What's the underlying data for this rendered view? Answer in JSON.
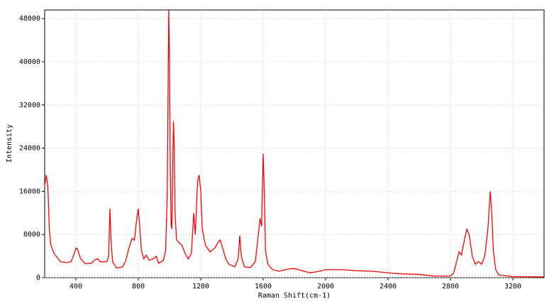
{
  "chart_data": {
    "type": "line",
    "x_label": "Raman Shift(cm-1)",
    "y_label": "Intensity",
    "xlim": [
      200,
      3400
    ],
    "ylim": [
      0,
      49600
    ],
    "xticks": [
      400,
      800,
      1200,
      1600,
      2000,
      2400,
      2800,
      3200
    ],
    "yticks": [
      0,
      8000,
      16000,
      24000,
      32000,
      40000,
      48000
    ],
    "grid": true,
    "x": [
      200,
      210,
      220,
      230,
      240,
      260,
      300,
      340,
      370,
      390,
      400,
      410,
      430,
      460,
      500,
      520,
      540,
      560,
      600,
      610,
      618,
      625,
      635,
      660,
      700,
      720,
      740,
      760,
      775,
      790,
      800,
      810,
      820,
      835,
      850,
      870,
      900,
      915,
      930,
      960,
      975,
      985,
      995,
      1000,
      1005,
      1010,
      1015,
      1025,
      1030,
      1035,
      1045,
      1060,
      1080,
      1100,
      1120,
      1140,
      1155,
      1165,
      1180,
      1190,
      1200,
      1210,
      1230,
      1260,
      1290,
      1310,
      1325,
      1340,
      1360,
      1380,
      1420,
      1440,
      1450,
      1460,
      1480,
      1520,
      1550,
      1580,
      1590,
      1600,
      1608,
      1615,
      1630,
      1660,
      1700,
      1760,
      1800,
      1850,
      1900,
      1960,
      2000,
      2100,
      2200,
      2300,
      2400,
      2500,
      2600,
      2700,
      2800,
      2820,
      2840,
      2855,
      2870,
      2890,
      2905,
      2920,
      2940,
      2960,
      2980,
      3000,
      3020,
      3040,
      3055,
      3065,
      3075,
      3090,
      3110,
      3200,
      3400
    ],
    "series": [
      {
        "name": "Intensity",
        "color": "#ff0000",
        "values": [
          17000,
          19000,
          17000,
          9000,
          6000,
          4500,
          3000,
          2800,
          3000,
          4500,
          5500,
          5300,
          3500,
          2600,
          2700,
          3300,
          3500,
          2900,
          3000,
          4000,
          12800,
          7000,
          3000,
          1800,
          2000,
          3200,
          5500,
          7300,
          7000,
          11000,
          12800,
          9000,
          5000,
          3500,
          4200,
          3200,
          3600,
          4000,
          2700,
          3200,
          5000,
          15000,
          49500,
          40000,
          20000,
          10000,
          9000,
          29000,
          25000,
          12000,
          7000,
          6500,
          6000,
          4500,
          3500,
          4500,
          12000,
          8000,
          18000,
          19000,
          16000,
          9000,
          6000,
          4800,
          5500,
          6500,
          7000,
          5500,
          3500,
          2500,
          2000,
          3500,
          7800,
          4000,
          2000,
          1900,
          3000,
          11000,
          9500,
          23000,
          15000,
          5000,
          2500,
          1500,
          1200,
          1600,
          1700,
          1300,
          900,
          1200,
          1500,
          1500,
          1300,
          1200,
          900,
          700,
          600,
          300,
          300,
          800,
          3000,
          4800,
          4200,
          7000,
          9000,
          8000,
          4000,
          2500,
          3000,
          2500,
          4000,
          9000,
          16000,
          12000,
          5000,
          1500,
          500,
          200,
          150
        ]
      }
    ]
  }
}
